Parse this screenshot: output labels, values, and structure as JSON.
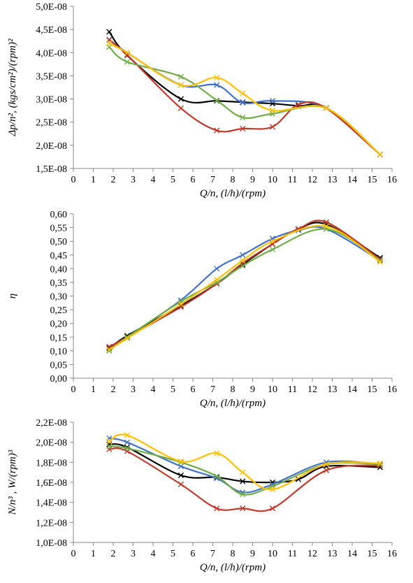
{
  "chart_data": [
    {
      "type": "line",
      "xlabel": "Q/n, (l/h)/(rpm)",
      "ylabel": "Δp/n², (kgs/cm²)/(rpm)²",
      "xlim": [
        0,
        16
      ],
      "ylim": [
        1.5e-08,
        5e-08
      ],
      "x_ticks": [
        "0",
        "1",
        "2",
        "3",
        "4",
        "5",
        "6",
        "7",
        "8",
        "9",
        "10",
        "11",
        "12",
        "13",
        "14",
        "15",
        "16"
      ],
      "y_ticks": [
        "1,5E-08",
        "2,0E-08",
        "2,5E-08",
        "3,0E-08",
        "3,5E-08",
        "4,0E-08",
        "4,5E-08",
        "5,0E-08"
      ],
      "grid": false,
      "series": [
        {
          "color": "#000000",
          "x": [
            1.8,
            2.7,
            5.4,
            7.2,
            8.5,
            10.0,
            11.3,
            12.7,
            15.4
          ],
          "y": [
            4.45e-08,
            3.94e-08,
            3e-08,
            2.96e-08,
            2.93e-08,
            2.9e-08,
            2.85e-08,
            2.8e-08,
            1.8e-08
          ]
        },
        {
          "color": "#4472C4",
          "x": [
            1.8,
            2.7,
            5.4,
            7.2,
            8.5,
            10.0,
            12.7,
            15.4
          ],
          "y": [
            4.27e-08,
            4e-08,
            3.3e-08,
            3.3e-08,
            2.92e-08,
            2.96e-08,
            2.81e-08,
            1.8e-08
          ]
        },
        {
          "color": "#C0392B",
          "x": [
            1.8,
            2.7,
            5.4,
            7.2,
            8.5,
            10.0,
            11.3,
            12.7,
            15.4
          ],
          "y": [
            4.28e-08,
            3.95e-08,
            2.8e-08,
            2.32e-08,
            2.36e-08,
            2.4e-08,
            2.88e-08,
            2.8e-08,
            1.8e-08
          ]
        },
        {
          "color": "#70AD47",
          "x": [
            1.8,
            2.7,
            5.4,
            7.2,
            8.5,
            10.0,
            12.7,
            15.4
          ],
          "y": [
            4.12e-08,
            3.8e-08,
            3.48e-08,
            2.97e-08,
            2.6e-08,
            2.68e-08,
            2.8e-08,
            1.8e-08
          ]
        },
        {
          "color": "#FFC000",
          "x": [
            1.8,
            2.7,
            5.4,
            7.2,
            8.5,
            10.0,
            12.7,
            15.4
          ],
          "y": [
            4.2e-08,
            4e-08,
            3.3e-08,
            3.46e-08,
            3.12e-08,
            2.75e-08,
            2.8e-08,
            1.8e-08
          ]
        }
      ]
    },
    {
      "type": "line",
      "xlabel": "Q/n, (l/h)/(rpm)",
      "ylabel": "η",
      "xlim": [
        0,
        16
      ],
      "ylim": [
        0,
        0.6
      ],
      "x_ticks": [
        "0",
        "1",
        "2",
        "3",
        "4",
        "5",
        "6",
        "7",
        "8",
        "9",
        "10",
        "11",
        "12",
        "13",
        "14",
        "15",
        "16"
      ],
      "y_ticks": [
        "0,00",
        "0,05",
        "0,10",
        "0,15",
        "0,20",
        "0,25",
        "0,30",
        "0,35",
        "0,40",
        "0,45",
        "0,50",
        "0,55",
        "0,60"
      ],
      "grid": false,
      "series": [
        {
          "color": "#000000",
          "x": [
            1.8,
            2.7,
            5.4,
            7.2,
            8.5,
            10.0,
            11.3,
            12.7,
            15.4
          ],
          "y": [
            0.11,
            0.155,
            0.265,
            0.345,
            0.415,
            0.49,
            0.545,
            0.562,
            0.44
          ]
        },
        {
          "color": "#4472C4",
          "x": [
            1.8,
            2.7,
            5.4,
            7.2,
            8.5,
            10.0,
            11.3,
            12.7,
            15.4
          ],
          "y": [
            0.105,
            0.15,
            0.285,
            0.4,
            0.45,
            0.51,
            0.54,
            0.545,
            0.43
          ]
        },
        {
          "color": "#C0392B",
          "x": [
            1.8,
            2.7,
            5.4,
            7.2,
            8.5,
            10.0,
            11.3,
            12.7,
            15.4
          ],
          "y": [
            0.115,
            0.15,
            0.26,
            0.345,
            0.42,
            0.49,
            0.545,
            0.57,
            0.435
          ]
        },
        {
          "color": "#70AD47",
          "x": [
            1.8,
            2.7,
            5.4,
            7.2,
            8.5,
            10.0,
            12.7,
            15.4
          ],
          "y": [
            0.1,
            0.15,
            0.28,
            0.35,
            0.41,
            0.47,
            0.545,
            0.43
          ]
        },
        {
          "color": "#FFC000",
          "x": [
            1.8,
            2.7,
            5.4,
            7.2,
            8.5,
            10.0,
            12.7,
            15.4
          ],
          "y": [
            0.105,
            0.145,
            0.27,
            0.36,
            0.43,
            0.5,
            0.555,
            0.425
          ]
        }
      ]
    },
    {
      "type": "line",
      "xlabel": "Q/n, (l/h)/(rpm)",
      "ylabel": "N/n³ , W/(rpm)³",
      "xlim": [
        0,
        16
      ],
      "ylim": [
        1e-08,
        2.2e-08
      ],
      "x_ticks": [
        "0",
        "1",
        "2",
        "3",
        "4",
        "5",
        "6",
        "7",
        "8",
        "9",
        "10",
        "11",
        "12",
        "13",
        "14",
        "15",
        "16"
      ],
      "y_ticks": [
        "1,0E-08",
        "1,2E-08",
        "1,4E-08",
        "1,6E-08",
        "1,8E-08",
        "2,0E-08",
        "2,2E-08"
      ],
      "grid": false,
      "series": [
        {
          "color": "#000000",
          "x": [
            1.8,
            2.7,
            5.4,
            7.2,
            8.5,
            10.0,
            11.3,
            12.7,
            15.4
          ],
          "y": [
            1.98e-08,
            1.95e-08,
            1.67e-08,
            1.65e-08,
            1.61e-08,
            1.6e-08,
            1.63e-08,
            1.76e-08,
            1.75e-08
          ]
        },
        {
          "color": "#4472C4",
          "x": [
            1.8,
            2.7,
            5.4,
            7.2,
            8.5,
            10.0,
            12.7,
            15.4
          ],
          "y": [
            2.04e-08,
            2e-08,
            1.76e-08,
            1.64e-08,
            1.5e-08,
            1.58e-08,
            1.8e-08,
            1.78e-08
          ]
        },
        {
          "color": "#C0392B",
          "x": [
            1.8,
            2.7,
            5.4,
            7.2,
            8.5,
            10.0,
            12.7,
            15.4
          ],
          "y": [
            1.93e-08,
            1.91e-08,
            1.58e-08,
            1.34e-08,
            1.34e-08,
            1.34e-08,
            1.72e-08,
            1.77e-08
          ]
        },
        {
          "color": "#70AD47",
          "x": [
            1.8,
            2.7,
            5.4,
            7.2,
            8.5,
            10.0,
            12.7,
            15.4
          ],
          "y": [
            1.96e-08,
            1.94e-08,
            1.8e-08,
            1.66e-08,
            1.48e-08,
            1.56e-08,
            1.78e-08,
            1.78e-08
          ]
        },
        {
          "color": "#FFC000",
          "x": [
            1.8,
            2.7,
            5.4,
            7.2,
            8.5,
            10.0,
            12.7,
            15.4
          ],
          "y": [
            2.01e-08,
            2.07e-08,
            1.81e-08,
            1.89e-08,
            1.7e-08,
            1.53e-08,
            1.78e-08,
            1.79e-08
          ]
        }
      ]
    }
  ]
}
